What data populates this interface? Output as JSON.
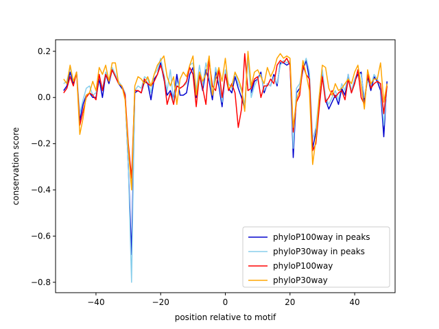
{
  "chart_data": {
    "type": "line",
    "title": "",
    "xlabel": "position relative to motif",
    "ylabel": "conservation score",
    "xlim": [
      -52.5,
      52.5
    ],
    "ylim": [
      -0.845,
      0.25
    ],
    "xticks": [
      -40,
      -20,
      0,
      20,
      40
    ],
    "xtick_labels": [
      "−40",
      "−20",
      "0",
      "20",
      "40"
    ],
    "yticks": [
      -0.8,
      -0.6,
      -0.4,
      -0.2,
      0.0,
      0.2
    ],
    "ytick_labels": [
      "−0.8",
      "−0.6",
      "−0.4",
      "−0.2",
      "0.0",
      "0.2"
    ],
    "grid": false,
    "legend_position": "lower-right",
    "x": [
      -50,
      -49,
      -48,
      -47,
      -46,
      -45,
      -44,
      -43,
      -42,
      -41,
      -40,
      -39,
      -38,
      -37,
      -36,
      -35,
      -34,
      -33,
      -32,
      -31,
      -30,
      -29,
      -28,
      -27,
      -26,
      -25,
      -24,
      -23,
      -22,
      -21,
      -20,
      -19,
      -18,
      -17,
      -16,
      -15,
      -14,
      -13,
      -12,
      -11,
      -10,
      -9,
      -8,
      -7,
      -6,
      -5,
      -4,
      -3,
      -2,
      -1,
      0,
      1,
      2,
      3,
      4,
      5,
      6,
      7,
      8,
      9,
      10,
      11,
      12,
      13,
      14,
      15,
      16,
      17,
      18,
      19,
      20,
      21,
      22,
      23,
      24,
      25,
      26,
      27,
      28,
      29,
      30,
      31,
      32,
      33,
      34,
      35,
      36,
      37,
      38,
      39,
      40,
      41,
      42,
      43,
      44,
      45,
      46,
      47,
      48,
      49,
      50
    ],
    "series": [
      {
        "name": "phyloP100way in peaks",
        "color": "#0000cd",
        "values": [
          0.03,
          0.05,
          0.11,
          0.06,
          0.11,
          -0.1,
          -0.03,
          0.01,
          0.02,
          0.0,
          0.0,
          0.08,
          0.0,
          0.1,
          0.06,
          0.12,
          0.09,
          0.06,
          0.04,
          0.02,
          -0.3,
          -0.68,
          0.02,
          0.03,
          0.02,
          0.07,
          0.06,
          -0.01,
          0.08,
          0.1,
          0.15,
          0.08,
          0.01,
          0.03,
          -0.01,
          0.1,
          0.01,
          0.01,
          0.02,
          0.1,
          0.13,
          0.0,
          0.1,
          0.03,
          0.12,
          0.07,
          -0.01,
          0.11,
          0.05,
          -0.04,
          0.11,
          0.04,
          0.02,
          0.09,
          0.04,
          0.0,
          -0.05,
          0.19,
          0.02,
          0.07,
          0.08,
          0.11,
          0.02,
          0.06,
          0.05,
          0.1,
          0.05,
          0.15,
          0.15,
          0.14,
          0.15,
          -0.26,
          0.02,
          0.04,
          0.12,
          0.16,
          0.08,
          -0.22,
          -0.15,
          -0.03,
          0.1,
          -0.01,
          -0.05,
          -0.02,
          0.01,
          -0.03,
          0.04,
          0.01,
          0.1,
          0.02,
          0.07,
          0.1,
          0.11,
          -0.02,
          0.09,
          0.03,
          0.09,
          0.07,
          0.03,
          -0.17,
          0.07
        ]
      },
      {
        "name": "phyloP30way in peaks",
        "color": "#87ceeb",
        "values": [
          0.06,
          0.07,
          0.13,
          0.07,
          0.11,
          -0.07,
          -0.01,
          0.04,
          0.05,
          0.01,
          0.02,
          0.09,
          0.04,
          0.11,
          0.08,
          0.13,
          0.1,
          0.07,
          0.05,
          0.02,
          -0.3,
          -0.8,
          0.03,
          0.05,
          0.04,
          0.09,
          0.08,
          0.02,
          0.1,
          0.12,
          0.17,
          0.1,
          0.03,
          0.12,
          -0.02,
          0.07,
          0.04,
          0.05,
          0.06,
          0.14,
          0.15,
          0.03,
          0.14,
          0.05,
          0.15,
          0.09,
          0.01,
          0.13,
          0.07,
          -0.02,
          0.12,
          0.06,
          0.04,
          0.11,
          0.06,
          0.03,
          -0.03,
          0.17,
          0.0,
          0.05,
          0.08,
          0.1,
          0.03,
          0.06,
          0.05,
          0.09,
          0.06,
          0.14,
          0.16,
          0.15,
          0.16,
          -0.22,
          0.04,
          0.06,
          0.13,
          0.17,
          0.11,
          -0.18,
          -0.13,
          0.0,
          0.12,
          0.0,
          -0.03,
          0.0,
          0.03,
          -0.01,
          0.06,
          0.03,
          0.1,
          0.03,
          0.08,
          0.11,
          0.1,
          0.0,
          0.07,
          0.05,
          0.1,
          0.08,
          0.05,
          -0.12,
          0.05
        ]
      },
      {
        "name": "phyloP100way",
        "color": "#ff0000",
        "values": [
          0.02,
          0.04,
          0.09,
          0.05,
          0.11,
          -0.12,
          -0.06,
          0.0,
          0.02,
          0.01,
          -0.01,
          0.1,
          0.03,
          0.1,
          0.07,
          0.12,
          0.09,
          0.06,
          0.05,
          0.01,
          -0.2,
          -0.35,
          0.03,
          0.03,
          0.02,
          0.08,
          0.06,
          0.05,
          0.07,
          0.1,
          0.14,
          0.09,
          -0.03,
          0.02,
          -0.03,
          0.05,
          0.04,
          0.05,
          0.07,
          0.13,
          0.1,
          -0.04,
          0.1,
          0.04,
          -0.03,
          0.16,
          0.05,
          0.03,
          0.12,
          0.0,
          0.1,
          0.03,
          0.06,
          0.02,
          -0.13,
          -0.05,
          0.19,
          0.03,
          0.04,
          0.08,
          0.09,
          0.0,
          0.05,
          0.05,
          0.08,
          0.06,
          0.14,
          0.16,
          0.15,
          0.17,
          0.14,
          -0.15,
          -0.02,
          0.01,
          0.14,
          0.1,
          0.08,
          -0.23,
          -0.2,
          -0.05,
          0.09,
          -0.02,
          0.0,
          0.03,
          0.0,
          0.02,
          0.03,
          -0.01,
          0.08,
          0.02,
          0.06,
          0.12,
          0.0,
          -0.03,
          0.1,
          0.04,
          0.06,
          0.07,
          0.06,
          -0.07,
          0.05
        ]
      },
      {
        "name": "phyloP30way",
        "color": "#ffa500",
        "values": [
          0.08,
          0.06,
          0.14,
          0.07,
          0.11,
          -0.16,
          -0.09,
          0.01,
          0.02,
          0.07,
          0.03,
          0.13,
          0.1,
          0.14,
          0.07,
          0.15,
          0.15,
          0.06,
          0.05,
          -0.01,
          -0.22,
          -0.4,
          0.05,
          0.09,
          0.08,
          0.06,
          0.09,
          0.05,
          0.1,
          0.14,
          0.16,
          0.18,
          0.09,
          0.05,
          0.09,
          -0.03,
          0.08,
          0.11,
          0.09,
          0.14,
          0.18,
          0.01,
          0.11,
          0.07,
          0.1,
          0.18,
          0.01,
          0.08,
          0.13,
          0.07,
          0.17,
          0.04,
          0.05,
          0.11,
          0.08,
          0.04,
          -0.06,
          0.2,
          0.05,
          0.11,
          0.12,
          0.09,
          0.06,
          0.13,
          0.09,
          0.12,
          0.17,
          0.19,
          0.17,
          0.18,
          0.17,
          -0.13,
          -0.01,
          0.03,
          0.16,
          0.1,
          0.03,
          -0.29,
          -0.18,
          0.0,
          0.14,
          0.13,
          0.04,
          0.01,
          0.06,
          0.03,
          0.04,
          0.06,
          0.08,
          0.06,
          0.11,
          0.14,
          0.05,
          -0.05,
          0.12,
          0.06,
          0.08,
          0.08,
          0.15,
          -0.02,
          0.06
        ]
      }
    ]
  }
}
